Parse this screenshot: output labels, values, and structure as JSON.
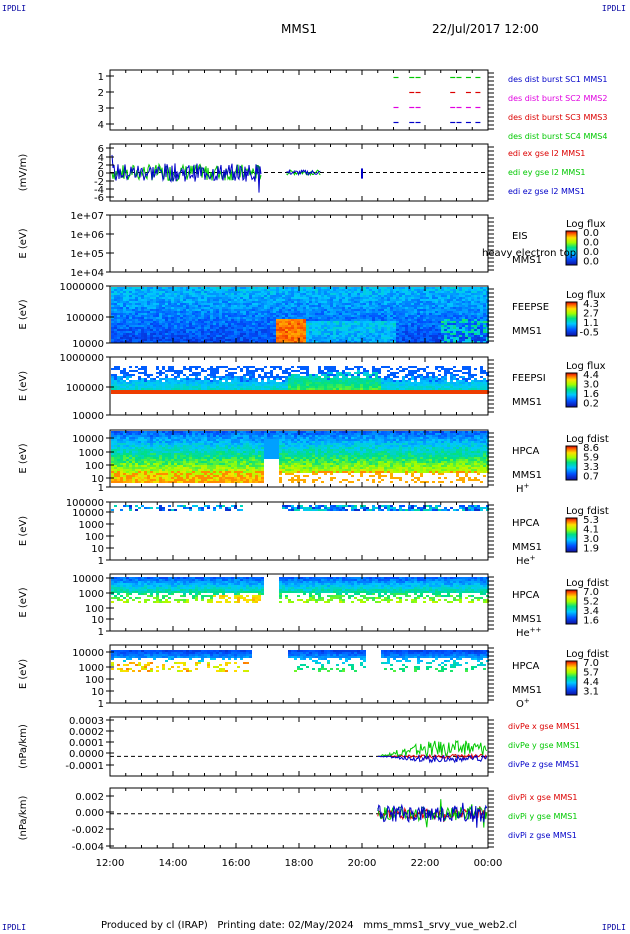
{
  "corner_label": "IPDLI",
  "header": {
    "spacecraft": "MMS1",
    "date": "22/Jul/2017 12:00"
  },
  "footer": {
    "produced_by": "Produced by cl (IRAP)",
    "printing_date": "Printing date: 02/May/2024",
    "script": "mms_mms1_srvy_vue_web2.cl"
  },
  "colors": {
    "blue": "#0000c8",
    "red": "#dc0000",
    "green": "#00c800",
    "magenta": "#e000e0"
  },
  "x_axis": {
    "ticks": [
      "12:00",
      "14:00",
      "16:00",
      "18:00",
      "20:00",
      "22:00",
      "00:00"
    ],
    "range_hours": [
      12,
      24
    ]
  },
  "chart_data": [
    {
      "type": "scatter",
      "panel": "burst",
      "yticks": [
        "1",
        "2",
        "3",
        "4"
      ],
      "ylim": [
        0.5,
        4.5
      ],
      "series": [
        {
          "name": "des dist burst SC1 MMS1",
          "color": "#0000c8",
          "y": 1,
          "x": [
            21.0,
            21.5,
            21.7,
            22.8,
            23.0,
            23.3,
            23.6
          ]
        },
        {
          "name": "des dist burst SC2 MMS2",
          "color": "#e000e0",
          "y": 2,
          "x": [
            21.0,
            21.5,
            21.7,
            22.8,
            23.0,
            23.3,
            23.6
          ]
        },
        {
          "name": "des dist burst SC3 MMS3",
          "color": "#dc0000",
          "y": 3,
          "x": [
            21.5,
            21.7,
            22.8,
            23.3,
            23.6
          ]
        },
        {
          "name": "des dist burst SC4 MMS4",
          "color": "#00c800",
          "y": 4,
          "x": [
            21.0,
            21.5,
            21.7,
            22.8,
            23.0,
            23.3,
            23.6
          ]
        }
      ]
    },
    {
      "type": "line",
      "panel": "edi",
      "ylabel": "(mV/m)",
      "yticks": [
        "6",
        "4",
        "2",
        "0",
        "-2",
        "-4",
        "-6"
      ],
      "ylim": [
        -7,
        7
      ],
      "series": [
        {
          "name": "edi ex gse l2 MMS1",
          "color": "#dc0000"
        },
        {
          "name": "edi ey gse l2 MMS1",
          "color": "#00c800"
        },
        {
          "name": "edi ez gse l2 MMS1",
          "color": "#0000c8"
        }
      ]
    },
    {
      "type": "heatmap",
      "panel": "eis",
      "ylabel": "E (eV)",
      "yticks": [
        "1e+07",
        "1e+06",
        "1e+05",
        "1e+04"
      ],
      "instrument": "EIS",
      "spacecraft": "MMS1",
      "overlay_text": "heavy electron top",
      "colorbar": {
        "title": "Log flux",
        "ticks": [
          "0.0",
          "0.0",
          "0.0",
          "0.0"
        ]
      }
    },
    {
      "type": "heatmap",
      "panel": "feepse",
      "ylabel": "E (eV)",
      "yticks": [
        "1000000",
        "100000",
        "10000"
      ],
      "instrument": "FEEPSE",
      "spacecraft": "MMS1",
      "colorbar": {
        "title": "Log flux",
        "ticks": [
          "4.3",
          "2.7",
          "1.1",
          "-0.5"
        ]
      }
    },
    {
      "type": "heatmap",
      "panel": "feepsi",
      "ylabel": "E (eV)",
      "yticks": [
        "1000000",
        "100000",
        "10000"
      ],
      "instrument": "FEEPSI",
      "spacecraft": "MMS1",
      "colorbar": {
        "title": "Log flux",
        "ticks": [
          "4.4",
          "3.0",
          "1.6",
          "0.2"
        ]
      }
    },
    {
      "type": "heatmap",
      "panel": "hpca-h",
      "ylabel": "E (eV)",
      "yticks": [
        "10000",
        "1000",
        "100",
        "10",
        "1"
      ],
      "instrument": "HPCA",
      "spacecraft": "MMS1",
      "species": "H",
      "charge": "+",
      "colorbar": {
        "title": "Log fdist",
        "ticks": [
          "8.6",
          "5.9",
          "3.3",
          "0.7"
        ]
      }
    },
    {
      "type": "heatmap",
      "panel": "hpca-he",
      "ylabel": "E (eV)",
      "yticks": [
        "100000",
        "10000",
        "1000",
        "100",
        "10",
        "1"
      ],
      "instrument": "HPCA",
      "spacecraft": "MMS1",
      "species": "He",
      "charge": "+",
      "colorbar": {
        "title": "Log fdist",
        "ticks": [
          "5.3",
          "4.1",
          "3.0",
          "1.9"
        ]
      }
    },
    {
      "type": "heatmap",
      "panel": "hpca-hepp",
      "ylabel": "E (eV)",
      "yticks": [
        "10000",
        "1000",
        "100",
        "10",
        "1"
      ],
      "instrument": "HPCA",
      "spacecraft": "MMS1",
      "species": "He",
      "charge": "++",
      "colorbar": {
        "title": "Log fdist",
        "ticks": [
          "7.0",
          "5.2",
          "3.4",
          "1.6"
        ]
      }
    },
    {
      "type": "heatmap",
      "panel": "hpca-o",
      "ylabel": "E (eV)",
      "yticks": [
        "10000",
        "1000",
        "100",
        "10",
        "1"
      ],
      "instrument": "HPCA",
      "spacecraft": "MMS1",
      "species": "O",
      "charge": "+",
      "colorbar": {
        "title": "Log fdist",
        "ticks": [
          "7.0",
          "5.7",
          "4.4",
          "3.1"
        ]
      }
    },
    {
      "type": "line",
      "panel": "divpe",
      "ylabel": "(nPa/km)",
      "yticks": [
        "0.0003",
        "0.0002",
        "0.0001",
        "0.0000",
        "-0.0001"
      ],
      "ylim": [
        -0.00015,
        0.0003
      ],
      "series": [
        {
          "name": "divPe x gse MMS1",
          "color": "#dc0000"
        },
        {
          "name": "divPe y gse MMS1",
          "color": "#00c800"
        },
        {
          "name": "divPe z gse MMS1",
          "color": "#0000c8"
        }
      ]
    },
    {
      "type": "line",
      "panel": "divpi",
      "ylabel": "(nPa/km)",
      "yticks": [
        "0.002",
        "0.000",
        "-0.002",
        "-0.004"
      ],
      "ylim": [
        -0.004,
        0.003
      ],
      "series": [
        {
          "name": "divPi x gse MMS1",
          "color": "#dc0000"
        },
        {
          "name": "divPi y gse MMS1",
          "color": "#00c800"
        },
        {
          "name": "divPi z gse MMS1",
          "color": "#0000c8"
        }
      ]
    }
  ]
}
